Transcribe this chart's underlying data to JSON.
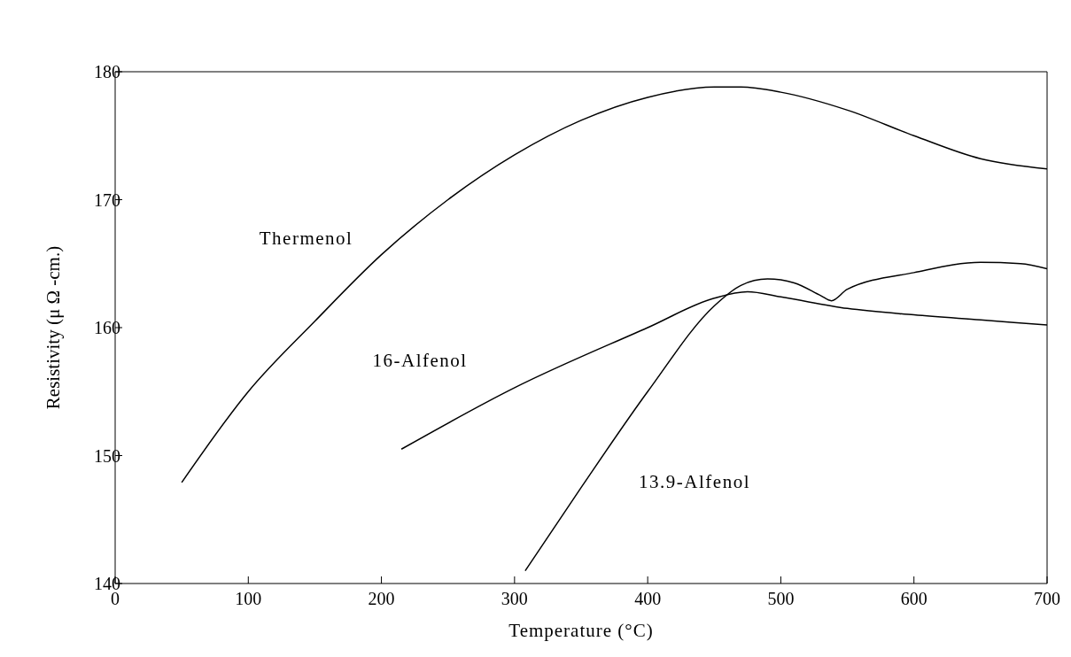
{
  "chart_data": {
    "type": "line",
    "xlabel": "Temperature (°C)",
    "ylabel": "Resistivity (μ Ω -cm.)",
    "xlim": [
      0,
      700
    ],
    "xticks": [
      0,
      100,
      200,
      300,
      400,
      500,
      600,
      700
    ],
    "ylim": [
      140,
      180
    ],
    "yticks": [
      140,
      150,
      160,
      170,
      180
    ],
    "marker": "none",
    "line_style": "solid",
    "series": [
      {
        "name": "Thermenol",
        "color": "#000000",
        "x": [
          50,
          100,
          150,
          200,
          250,
          300,
          350,
          400,
          450,
          470,
          500,
          550,
          600,
          650,
          700
        ],
        "values": [
          147.9,
          155,
          160.5,
          165.7,
          170,
          173.5,
          176.2,
          178,
          178.8,
          178.8,
          178.4,
          177,
          175,
          173.2,
          172.4
        ]
      },
      {
        "name": "16-Alfenol",
        "color": "#000000",
        "x": [
          215,
          300,
          400,
          450,
          475,
          500,
          550,
          600,
          650,
          700
        ],
        "values": [
          150.5,
          155.3,
          160,
          162.3,
          162.8,
          162.4,
          161.5,
          161,
          160.6,
          160.2
        ]
      },
      {
        "name": "13.9-Alfenol",
        "color": "#000000",
        "x": [
          308,
          350,
          400,
          450,
          470,
          490,
          510,
          530,
          538,
          550,
          600,
          650,
          680,
          700
        ],
        "values": [
          141,
          147.5,
          155,
          161.7,
          163.3,
          163.8,
          163.5,
          162.5,
          162.1,
          163,
          164.3,
          165.1,
          165,
          164.6
        ]
      }
    ]
  }
}
